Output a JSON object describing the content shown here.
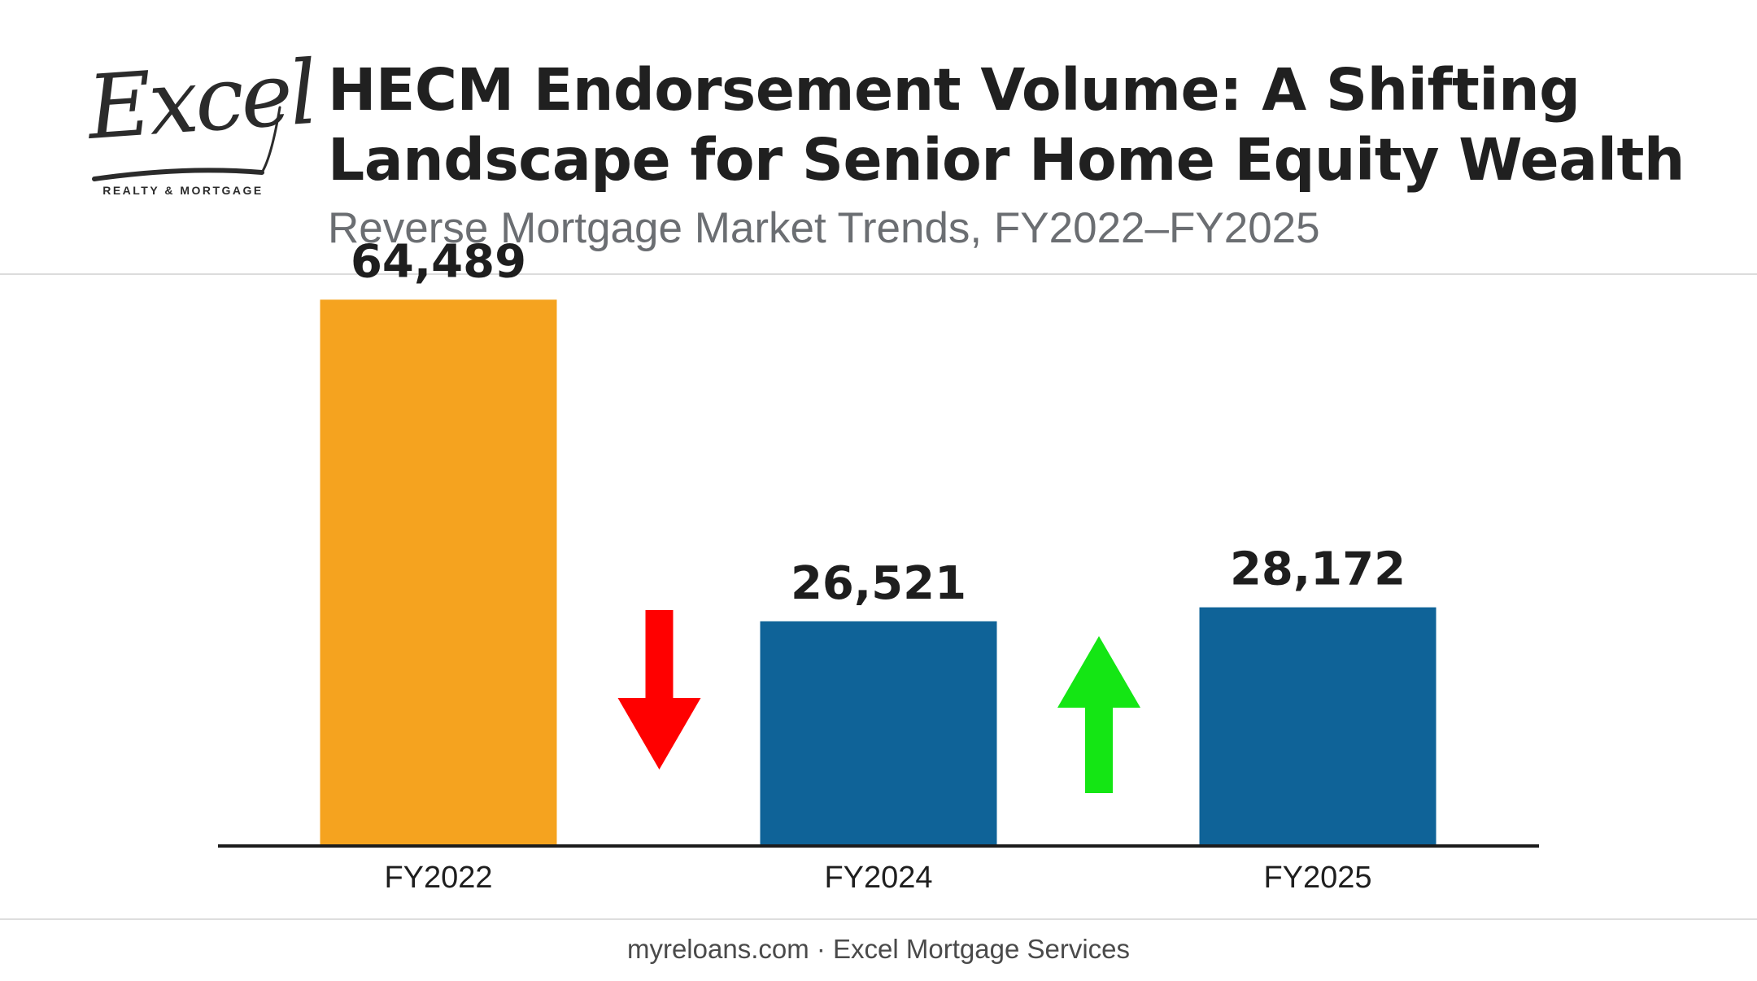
{
  "logo": {
    "script_text": "Excel",
    "tagline": "REALTY & MORTGAGE"
  },
  "title": "HECM Endorsement Volume: A Shifting Landscape for Senior Home Equity Wealth",
  "subtitle": "Reverse Mortgage Market Trends, FY2022–FY2025",
  "chart_data": {
    "type": "bar",
    "categories": [
      "FY2022",
      "FY2024",
      "FY2025"
    ],
    "values": [
      64489,
      26521,
      28172
    ],
    "data_labels": [
      "64,489",
      "26,521",
      "28,172"
    ],
    "bar_colors": [
      "#f5a31f",
      "#0f6398",
      "#0f6398"
    ],
    "ylim": [
      0,
      70000
    ],
    "grid": false,
    "legend": "none",
    "annotations": [
      {
        "kind": "arrow",
        "direction": "down",
        "between": [
          "FY2022",
          "FY2024"
        ],
        "color": "#ff0000",
        "icon": "down-arrow-icon"
      },
      {
        "kind": "arrow",
        "direction": "up",
        "between": [
          "FY2024",
          "FY2025"
        ],
        "color": "#14e614",
        "icon": "up-arrow-icon"
      }
    ],
    "xlabel": "",
    "ylabel": ""
  },
  "footer": {
    "site": "myreloans.com",
    "separator": "·",
    "company": "Excel Mortgage Services"
  },
  "colors": {
    "title": "#202020",
    "subtitle": "#6b6e72",
    "axis": "#1c1c1c"
  }
}
